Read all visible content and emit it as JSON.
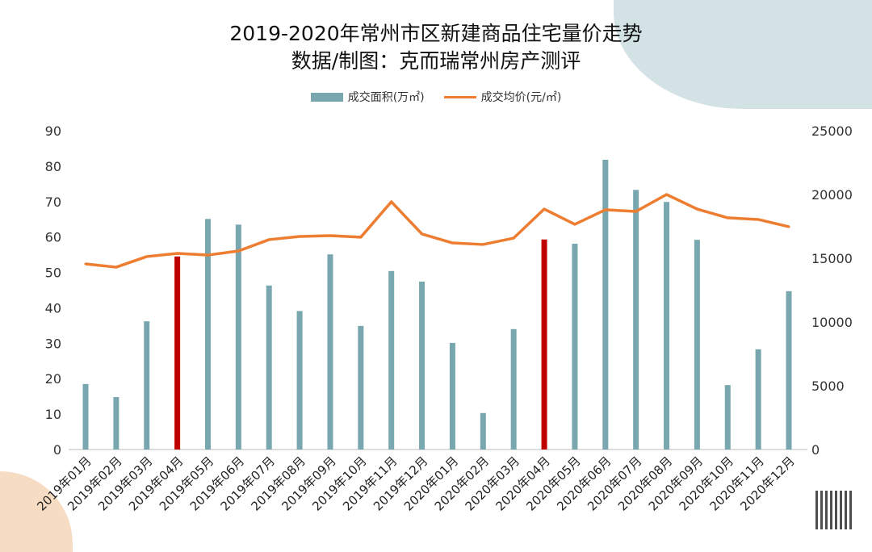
{
  "title": "2019-2020年常州市区新建商品住宅量价走势",
  "subtitle": "数据/制图：克而瑞常州房产测评",
  "chart_data": {
    "type": "bar+line",
    "categories": [
      "2019年01月",
      "2019年02月",
      "2019年03月",
      "2019年04月",
      "2019年05月",
      "2019年06月",
      "2019年07月",
      "2019年08月",
      "2019年09月",
      "2019年10月",
      "2019年11月",
      "2019年12月",
      "2020年01月",
      "2020年02月",
      "2020年03月",
      "2020年04月",
      "2020年05月",
      "2020年06月",
      "2020年07月",
      "2020年08月",
      "2020年09月",
      "2020年10月",
      "2020年11月",
      "2020年12月"
    ],
    "series": [
      {
        "name": "成交面积(万㎡)",
        "type": "bar",
        "axis": "left",
        "color": "#79a7b0",
        "highlight_color": "#c00000",
        "highlighted": [
          "2019年04月",
          "2020年04月"
        ],
        "values": [
          18.5,
          14.8,
          36.2,
          54.5,
          65.1,
          63.5,
          46.3,
          39.1,
          55.1,
          34.9,
          50.4,
          47.4,
          30.1,
          10.3,
          34.0,
          59.3,
          58.1,
          81.8,
          73.3,
          69.9,
          59.2,
          18.2,
          28.3,
          44.7
        ]
      },
      {
        "name": "成交均价(元/㎡)",
        "type": "line",
        "axis": "right",
        "color": "#ed7d31",
        "values": [
          14560,
          14300,
          15130,
          15380,
          15250,
          15570,
          16460,
          16710,
          16770,
          16650,
          19430,
          16900,
          16200,
          16080,
          16580,
          18860,
          17660,
          18800,
          18670,
          20000,
          18860,
          18170,
          18040,
          17470
        ]
      }
    ],
    "y_left": {
      "range": [
        0,
        90
      ],
      "ticks": [
        0,
        10,
        20,
        30,
        40,
        50,
        60,
        70,
        80,
        90
      ]
    },
    "y_right": {
      "range": [
        0,
        25000
      ],
      "ticks": [
        0,
        5000,
        10000,
        15000,
        20000,
        25000
      ]
    },
    "legend_position": "top",
    "grid": false
  }
}
